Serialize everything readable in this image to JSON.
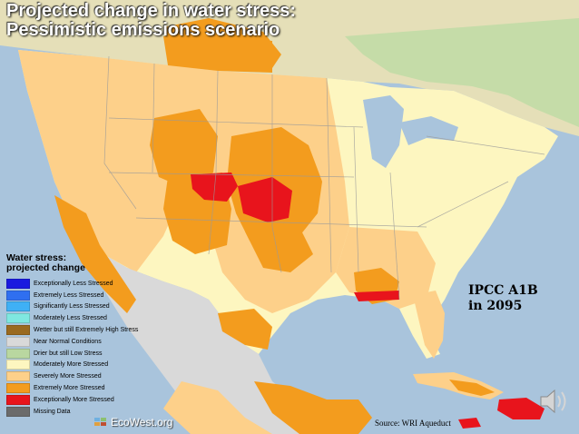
{
  "title": {
    "line1": "Projected change in water stress:",
    "line2": "Pessimistic emissions scenario"
  },
  "legend": {
    "title_line1": "Water stress:",
    "title_line2": "projected change",
    "items": [
      {
        "label": "Exceptionally Less Stressed",
        "color": "#1a1adf"
      },
      {
        "label": "Extremely Less Stressed",
        "color": "#2f6ff0"
      },
      {
        "label": "Significantly Less Stressed",
        "color": "#3fb0f5"
      },
      {
        "label": "Moderately Less Stressed",
        "color": "#7fe7e0"
      },
      {
        "label": "Wetter but still Extremely High Stress",
        "color": "#9a6a20"
      },
      {
        "label": "Near Normal Conditions",
        "color": "#d9d9d9"
      },
      {
        "label": "Drier but still Low Stress",
        "color": "#b9d7a0"
      },
      {
        "label": "Moderately More Stressed",
        "color": "#fdf6c0"
      },
      {
        "label": "Severely More Stressed",
        "color": "#fdd08a"
      },
      {
        "label": "Extremely More Stressed",
        "color": "#f39c1e"
      },
      {
        "label": "Exceptionally More Stressed",
        "color": "#e8141c"
      },
      {
        "label": "Missing Data",
        "color": "#6b6b6b"
      }
    ]
  },
  "annotation": {
    "line1": "IPCC A1B",
    "line2": "in 2095"
  },
  "source": "Source: WRI Aqueduct",
  "brand": "EcoWest.org",
  "icons": {
    "brand": "ecowest-logo-icon",
    "audio": "speaker-icon"
  }
}
